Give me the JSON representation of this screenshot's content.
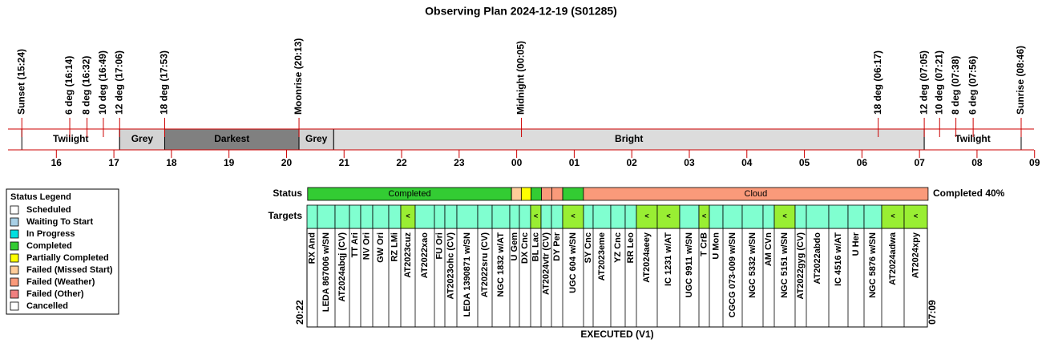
{
  "title": "Observing Plan 2024-12-19 (S01285)",
  "hour_axis": {
    "xlim": [
      15.16,
      32.99
    ],
    "ticks": [
      16,
      17,
      18,
      19,
      20,
      21,
      22,
      23,
      {
        "value": 24,
        "label": "00"
      },
      {
        "value": 25,
        "label": "01"
      },
      {
        "value": 26,
        "label": "02"
      },
      {
        "value": 27,
        "label": "03"
      },
      {
        "value": 28,
        "label": "04"
      },
      {
        "value": 29,
        "label": "05"
      },
      {
        "value": 30,
        "label": "06"
      },
      {
        "value": 31,
        "label": "07"
      },
      {
        "value": 32,
        "label": "08"
      },
      {
        "value": 33,
        "label": "09"
      }
    ],
    "line_color": "#cc0000"
  },
  "events": [
    {
      "label": "Sunset (15:24)",
      "time": 15.4,
      "color": "#000000"
    },
    {
      "label": "6 deg (16:14)",
      "time": 16.233,
      "color": "#000000"
    },
    {
      "label": "8 deg (16:32)",
      "time": 16.533,
      "color": "#000000"
    },
    {
      "label": "10 deg (16:49)",
      "time": 16.817,
      "color": "#000000"
    },
    {
      "label": "12 deg (17:06)",
      "time": 17.1,
      "color": "#000000"
    },
    {
      "label": "18 deg (17:53)",
      "time": 17.883,
      "color": "#000000"
    },
    {
      "label": "Moonrise (20:13)",
      "time": 20.217,
      "color": "#0000cc"
    },
    {
      "label": "Midnight (00:05)",
      "time": 24.083,
      "color": "#000000"
    },
    {
      "label": "18 deg (06:17)",
      "time": 30.283,
      "color": "#000000"
    },
    {
      "label": "12 deg (07:05)",
      "time": 31.083,
      "color": "#000000"
    },
    {
      "label": "10 deg (07:21)",
      "time": 31.35,
      "color": "#000000"
    },
    {
      "label": "8 deg (07:38)",
      "time": 31.633,
      "color": "#000000"
    },
    {
      "label": "6 deg (07:56)",
      "time": 31.933,
      "color": "#000000"
    },
    {
      "label": "Sunrise (08:46)",
      "time": 32.767,
      "color": "#000000"
    }
  ],
  "bands": [
    {
      "label": "Twilight",
      "start": 15.4,
      "end": 17.1,
      "color": "#ffffff",
      "text_color": "#000000"
    },
    {
      "label": "Grey",
      "start": 17.1,
      "end": 17.883,
      "color": "#d3d3d3",
      "text_color": "#000000"
    },
    {
      "label": "Darkest",
      "start": 17.883,
      "end": 20.217,
      "color": "#808080",
      "text_color": "#ffffff"
    },
    {
      "label": "Grey",
      "start": 20.217,
      "end": 20.82,
      "color": "#d3d3d3",
      "text_color": "#000000"
    },
    {
      "label": "Bright",
      "start": 20.82,
      "end": 31.083,
      "color": "#dcdcdc",
      "text_color": "#000000"
    },
    {
      "label": "Twilight",
      "start": 31.083,
      "end": 32.767,
      "color": "#ffffff",
      "text_color": "#000000"
    }
  ],
  "status": {
    "label": "Status",
    "summary": "Completed 40%",
    "segments": [
      {
        "start": 20.367,
        "end": 23.91,
        "color": "#33cc33",
        "label": "Completed"
      },
      {
        "start": 23.91,
        "end": 24.08,
        "color": "#ffcc99"
      },
      {
        "start": 24.08,
        "end": 24.25,
        "color": "#ffff00"
      },
      {
        "start": 24.25,
        "end": 24.43,
        "color": "#33cc33"
      },
      {
        "start": 24.43,
        "end": 24.61,
        "color": "#fa9a7a"
      },
      {
        "start": 24.61,
        "end": 24.8,
        "color": "#fa9a7a"
      },
      {
        "start": 24.8,
        "end": 25.16,
        "color": "#33cc33"
      },
      {
        "start": 25.16,
        "end": 31.15,
        "color": "#fa9a7a",
        "label": "Cloud"
      }
    ]
  },
  "targets": {
    "label": "Targets",
    "color": "#80ffd0",
    "marked_color": "#99ee33",
    "name_color": "#0000cc",
    "items": [
      {
        "name": "RX And"
      },
      {
        "name": "LEDA 867006 w/SN"
      },
      {
        "name": "AT2024abqj (CV)"
      },
      {
        "name": "TT Ari"
      },
      {
        "name": "NV Ori"
      },
      {
        "name": "GW Ori"
      },
      {
        "name": "RZ LMi"
      },
      {
        "name": "AT2023cuz",
        "marker": "<"
      },
      {
        "name": "AT2022xao"
      },
      {
        "name": "FU Ori"
      },
      {
        "name": "AT2023ohc (CV)"
      },
      {
        "name": "LEDA 1390871 w/SN"
      },
      {
        "name": "AT2022sru (CV)"
      },
      {
        "name": "NGC 1832 w/AT"
      },
      {
        "name": "U Gem"
      },
      {
        "name": "DX Cnc"
      },
      {
        "name": "BL Lac",
        "marker": "<"
      },
      {
        "name": "AT2024vtr (CV)"
      },
      {
        "name": "DY Per"
      },
      {
        "name": "UGC 604 w/SN",
        "marker": "<"
      },
      {
        "name": "SY Cnc"
      },
      {
        "name": "AT2023eme"
      },
      {
        "name": "YZ Cnc"
      },
      {
        "name": "RR Leo"
      },
      {
        "name": "AT2024aeey",
        "marker": "<"
      },
      {
        "name": "IC 1231 w/AT",
        "marker": "<"
      },
      {
        "name": "UGC 9911 w/SN"
      },
      {
        "name": "T CrB",
        "marker": "<"
      },
      {
        "name": "U Mon"
      },
      {
        "name": "CGCG 073-009 w/SN"
      },
      {
        "name": "NGC 5332 w/SN"
      },
      {
        "name": "AM CVn"
      },
      {
        "name": "NGC 5151 w/SN",
        "marker": "<"
      },
      {
        "name": "AT2022gyg (CV)"
      },
      {
        "name": "AT2022abdo"
      },
      {
        "name": "IC 4516 w/AT"
      },
      {
        "name": "U Her"
      },
      {
        "name": "NGC 5876 w/SN"
      },
      {
        "name": "AT2024adwa",
        "marker": "<"
      },
      {
        "name": "AT2024xpy",
        "marker": "<"
      }
    ]
  },
  "executed": {
    "label": "EXECUTED (V1)",
    "start": "20:22",
    "end": "07:09"
  },
  "legend": {
    "title": "Status Legend",
    "items": [
      {
        "label": "Scheduled",
        "color": "#ffffff"
      },
      {
        "label": "Waiting To Start",
        "color": "#a8d0e6"
      },
      {
        "label": "In Progress",
        "color": "#00e0e0"
      },
      {
        "label": "Completed",
        "color": "#33cc33"
      },
      {
        "label": "Partially Completed",
        "color": "#ffff00"
      },
      {
        "label": "Failed (Missed Start)",
        "color": "#ffcc99"
      },
      {
        "label": "Failed (Weather)",
        "color": "#fa9a7a"
      },
      {
        "label": "Failed (Other)",
        "color": "#f08080"
      },
      {
        "label": "Cancelled",
        "color": "#ffffff"
      }
    ]
  }
}
